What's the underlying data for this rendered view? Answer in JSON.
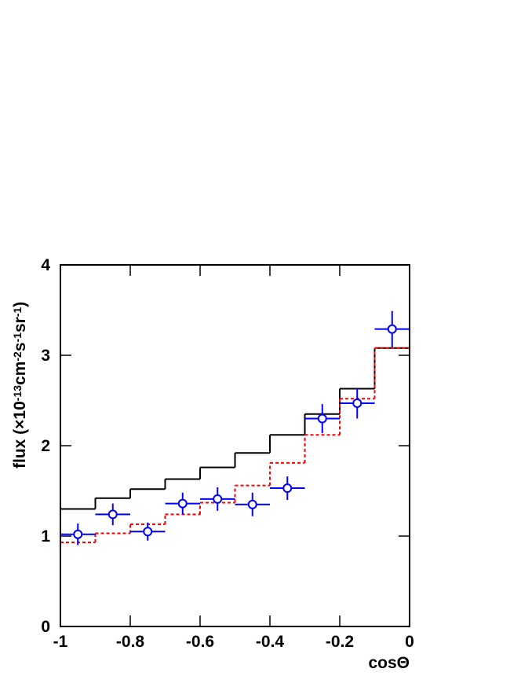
{
  "chart_data": {
    "type": "histogram",
    "xlabel": "cosΘ",
    "ylabel": [
      "flux (×10",
      "-13",
      "cm",
      "-2",
      "s",
      "-1",
      "sr",
      "-1",
      ")"
    ],
    "bins": [
      -1,
      -0.9,
      -0.8,
      -0.7,
      -0.6,
      -0.5,
      -0.4,
      -0.3,
      -0.2,
      -0.1,
      0
    ],
    "series": [
      {
        "style": "step",
        "color": "#000000",
        "values": [
          1.3,
          1.42,
          1.52,
          1.63,
          1.76,
          1.92,
          2.12,
          2.35,
          2.63,
          3.08
        ]
      },
      {
        "style": "dashed-step",
        "color": "#ff0000",
        "values": [
          0.93,
          1.03,
          1.13,
          1.24,
          1.37,
          1.56,
          1.81,
          2.12,
          2.52,
          3.08
        ]
      },
      {
        "style": "points",
        "color": "#0000ff",
        "values": [
          1.02,
          1.24,
          1.05,
          1.36,
          1.41,
          1.35,
          1.53,
          2.3,
          2.47,
          3.29
        ],
        "errors": [
          0.12,
          0.12,
          0.1,
          0.12,
          0.13,
          0.13,
          0.13,
          0.16,
          0.17,
          0.2
        ]
      }
    ],
    "xlim": [
      -1,
      0
    ],
    "ylim": [
      0,
      4
    ],
    "xticks": [
      -1,
      -0.8,
      -0.6,
      -0.4,
      -0.2,
      0
    ],
    "yticks": [
      0,
      1,
      2,
      3,
      4
    ]
  }
}
